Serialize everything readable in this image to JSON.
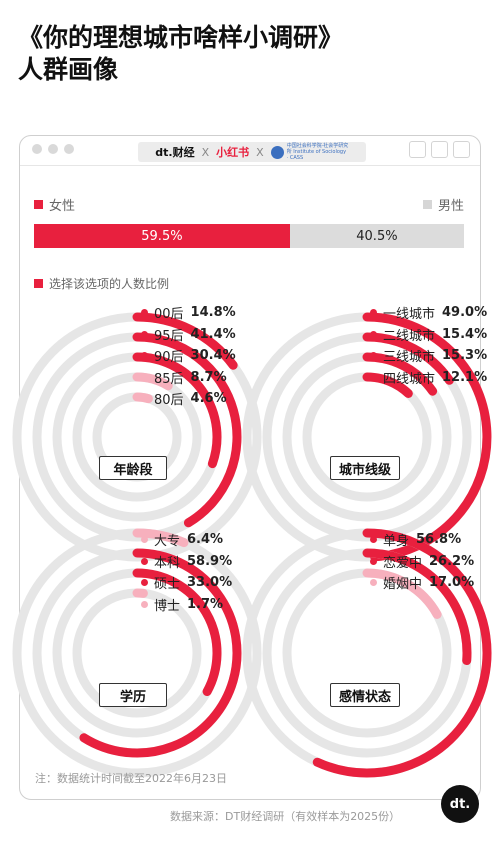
{
  "title_line1": "《你的理想城市啥样小调研》",
  "title_line2": "人群画像",
  "brand": {
    "dt": "dt.财经",
    "x": "X",
    "xiaohongshu": "小红书",
    "institute_text": "中国社会科学院·社会学研究所 Institute of Sociology · CASS"
  },
  "gender_legend": {
    "female": "女性",
    "male": "男性"
  },
  "legend_label": "选择该选项的人数比例",
  "colors": {
    "red": "#e8203e",
    "pink": "#f7b0bd",
    "ring_grey": "#e6e6e6"
  },
  "chart_data": [
    {
      "type": "bar",
      "title": "",
      "categories": [
        "女性",
        "男性"
      ],
      "values": [
        59.5,
        40.5
      ],
      "value_labels": [
        "59.5%",
        "40.5%"
      ]
    },
    {
      "type": "radial-bar",
      "title": "年龄段",
      "categories": [
        "00后",
        "95后",
        "90后",
        "85后",
        "80后"
      ],
      "values": [
        14.8,
        41.4,
        30.4,
        8.7,
        4.6
      ],
      "value_labels": [
        "14.8%",
        "41.4%",
        "30.4%",
        "8.7%",
        "4.6%"
      ]
    },
    {
      "type": "radial-bar",
      "title": "城市线级",
      "categories": [
        "一线城市",
        "二线城市",
        "三线城市",
        "四线城市"
      ],
      "values": [
        49.0,
        15.4,
        15.3,
        12.1
      ],
      "value_labels": [
        "49.0%",
        "15.4%",
        "15.3%",
        "12.1%"
      ]
    },
    {
      "type": "radial-bar",
      "title": "学历",
      "categories": [
        "大专",
        "本科",
        "硕士",
        "博士"
      ],
      "values": [
        6.4,
        58.9,
        33.0,
        1.7
      ],
      "value_labels": [
        "6.4%",
        "58.9%",
        "33.0%",
        "1.7%"
      ]
    },
    {
      "type": "radial-bar",
      "title": "感情状态",
      "categories": [
        "单身",
        "恋爱中",
        "婚姻中"
      ],
      "values": [
        56.8,
        26.2,
        17.0
      ],
      "value_labels": [
        "56.8%",
        "26.2%",
        "17.0%"
      ]
    }
  ],
  "note": "注：数据统计时间截至2022年6月23日",
  "source": "数据来源：DT财经调研（有效样本为2025份）",
  "footer_logo": "dt."
}
